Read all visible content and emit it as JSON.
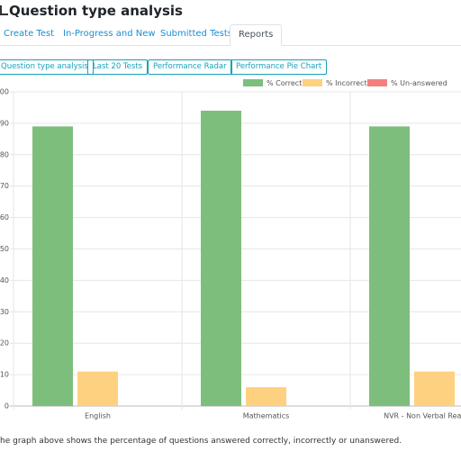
{
  "header": {
    "title": "Question type analysis"
  },
  "tabs": [
    "Create Test",
    "In-Progress and New",
    "Submitted Tests",
    "Reports"
  ],
  "buttons": [
    "Question type analysis",
    "Last 20 Tests",
    "Performance Radar",
    "Performance Pie Chart"
  ],
  "chart_data": {
    "type": "bar",
    "categories": [
      "English",
      "Mathematics",
      "NVR - Non Verbal Reasoning"
    ],
    "series": [
      {
        "name": "% Correct",
        "color": "#7dbe7d",
        "values": [
          89,
          94,
          89
        ]
      },
      {
        "name": "% Incorrect",
        "color": "#fed180",
        "values": [
          11,
          6,
          11
        ]
      },
      {
        "name": "% Un-answered",
        "color": "#f47f7f",
        "values": [
          0,
          0,
          0
        ]
      }
    ],
    "ylim": [
      0,
      100
    ],
    "yticks": [
      0,
      10,
      20,
      30,
      40,
      50,
      60,
      70,
      80,
      90,
      100
    ],
    "grid": true,
    "legend": "top"
  },
  "footer": {
    "note": "he graph above shows the percentage of questions answered correctly, incorrectly or unanswered."
  }
}
